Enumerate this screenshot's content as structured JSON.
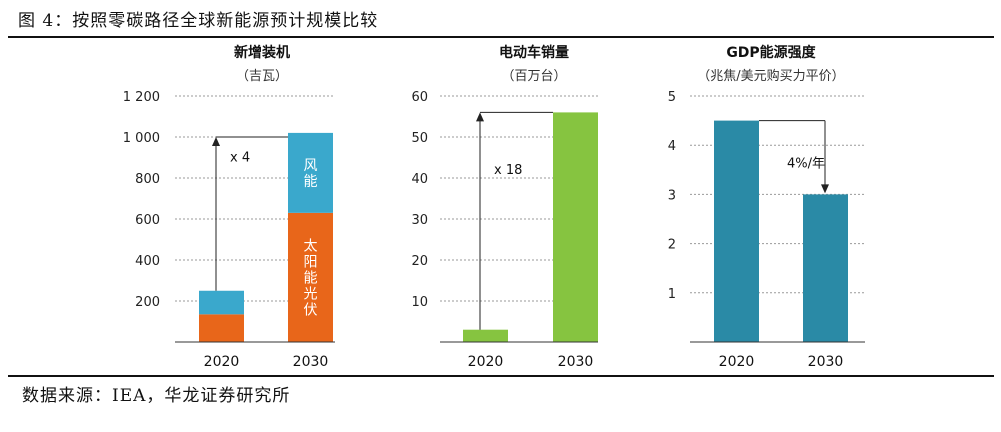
{
  "figure": {
    "title": "图 4：按照零碳路径全球新能源预计规模比较",
    "source": "数据来源：IEA，华龙证券研究所"
  },
  "colors": {
    "orange": "#e8661a",
    "cyan": "#3aa8cc",
    "green": "#86c440",
    "teal": "#2a8aa6",
    "grid": "#9a9a9a",
    "axis": "#333333"
  },
  "chart_data": [
    {
      "type": "bar",
      "title": "新增装机",
      "subtitle": "（吉瓦）",
      "categories": [
        "2020",
        "2030"
      ],
      "series": [
        {
          "name": "太阳能光伏",
          "values": [
            135,
            630
          ],
          "color": "#e8661a"
        },
        {
          "name": "风能",
          "values": [
            115,
            390
          ],
          "color": "#3aa8cc"
        }
      ],
      "ylim": [
        0,
        1200
      ],
      "yticks": [
        200,
        400,
        600,
        800,
        1000,
        1200
      ],
      "ytick_labels": [
        "200",
        "400",
        "600",
        "800",
        "1 000",
        "1 200"
      ],
      "grid": true,
      "annotation": "x 4"
    },
    {
      "type": "bar",
      "title": "电动车销量",
      "subtitle": "（百万台）",
      "categories": [
        "2020",
        "2030"
      ],
      "series": [
        {
          "name": "",
          "values": [
            3,
            56
          ],
          "color": "#86c440"
        }
      ],
      "ylim": [
        0,
        60
      ],
      "yticks": [
        10,
        20,
        30,
        40,
        50,
        60
      ],
      "ytick_labels": [
        "10",
        "20",
        "30",
        "40",
        "50",
        "60"
      ],
      "grid": true,
      "annotation": "x 18"
    },
    {
      "type": "bar",
      "title": "GDP能源强度",
      "subtitle": "（兆焦/美元购买力平价）",
      "categories": [
        "2020",
        "2030"
      ],
      "series": [
        {
          "name": "",
          "values": [
            4.5,
            3.0
          ],
          "color": "#2a8aa6"
        }
      ],
      "ylim": [
        0,
        5
      ],
      "yticks": [
        1,
        2,
        3,
        4,
        5
      ],
      "ytick_labels": [
        "1",
        "2",
        "3",
        "4",
        "5"
      ],
      "grid": true,
      "annotation": "4%/年"
    }
  ]
}
